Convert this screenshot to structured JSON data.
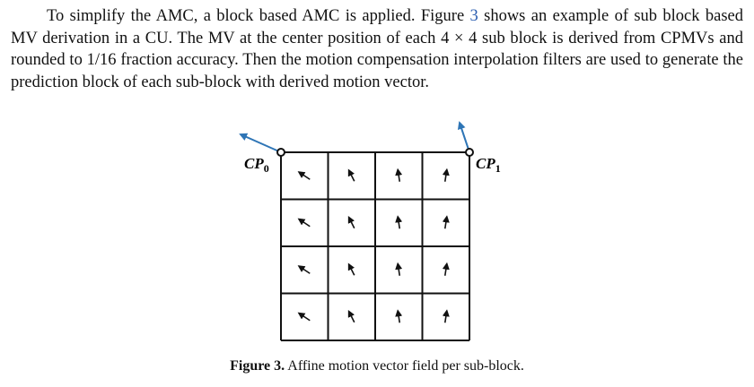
{
  "paragraph": {
    "part1": "To simplify the AMC, a block based AMC is applied. Figure ",
    "figure_ref": "3",
    "part2": " shows an example of sub block based MV derivation in a CU. The MV at the center position of each 4 × 4 sub block is derived from CPMVs and rounded to 1/16 fraction accuracy. Then the motion compensation interpolation filters are used to generate the prediction block of each sub-block with derived motion vector."
  },
  "figure": {
    "cp0_label": "CP",
    "cp0_sub": "0",
    "cp1_label": "CP",
    "cp1_sub": "1",
    "grid_rows": 4,
    "grid_cols": 4,
    "cpmv_color": "#2e75b6"
  },
  "caption": {
    "label": "Figure 3.",
    "text": " Affine motion vector field per sub-block."
  }
}
